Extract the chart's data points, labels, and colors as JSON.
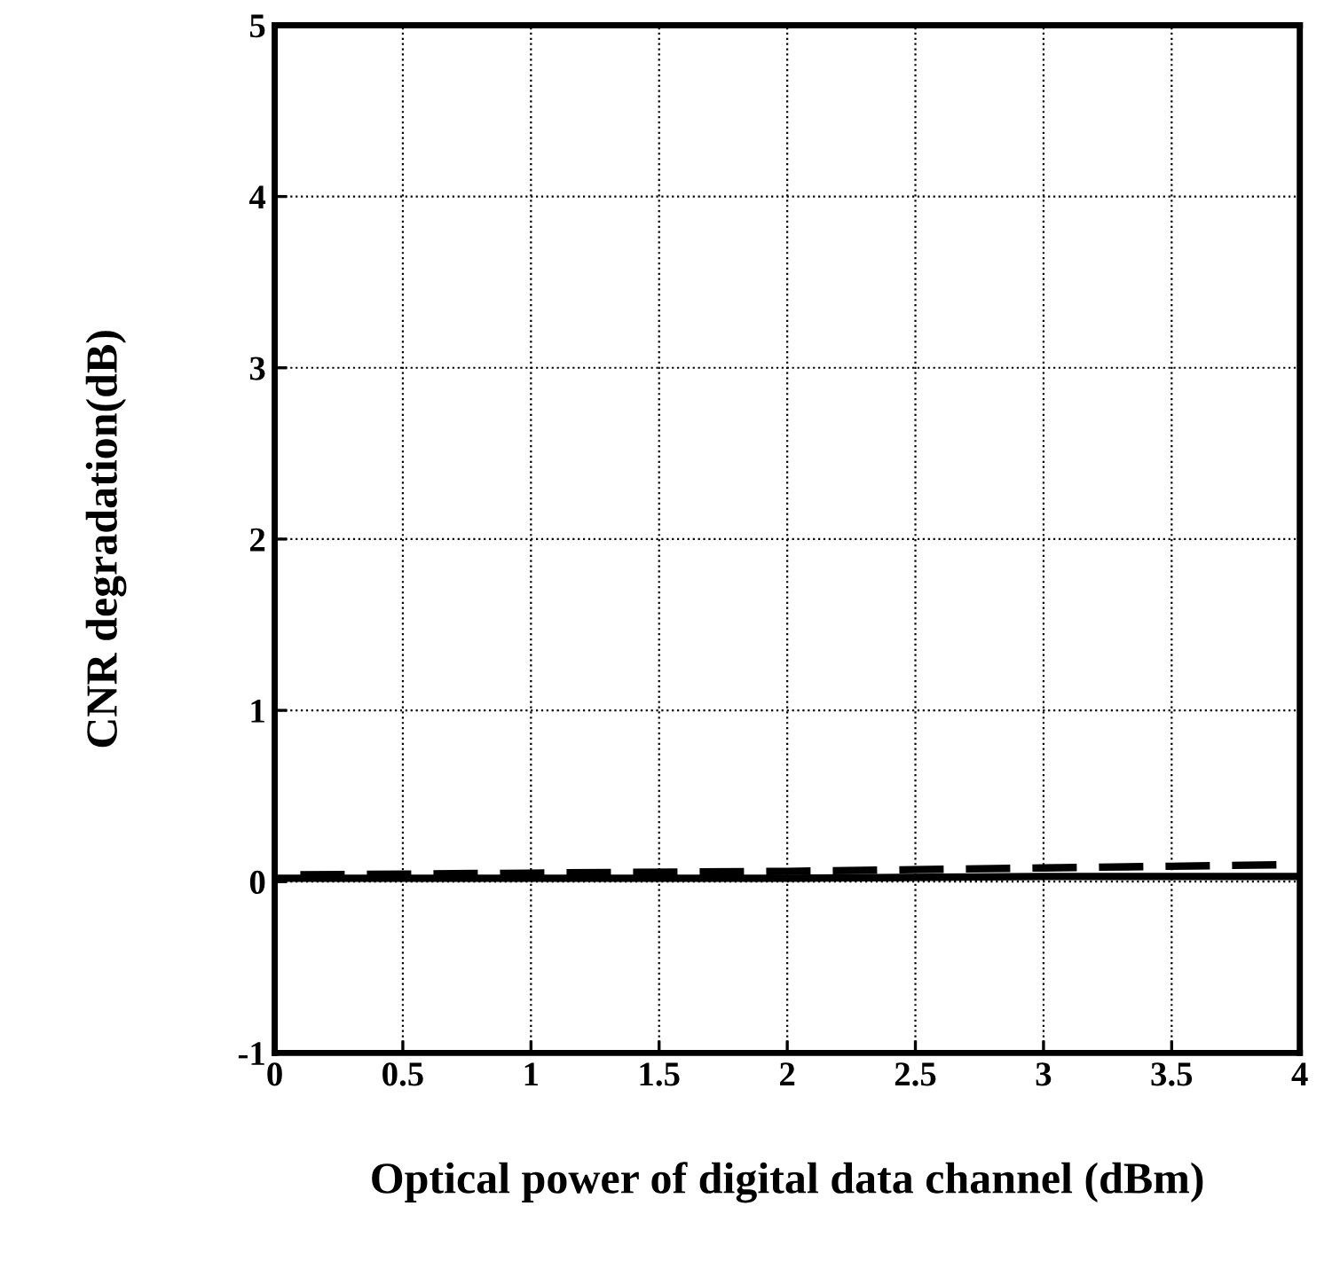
{
  "chart_data": {
    "type": "line",
    "xlabel": "Optical power of digital data channel (dBm)",
    "ylabel": "CNR degradation(dB)",
    "xlim": [
      0,
      4
    ],
    "ylim": [
      -1,
      5
    ],
    "xticks": [
      0,
      0.5,
      1,
      1.5,
      2,
      2.5,
      3,
      3.5,
      4
    ],
    "yticks": [
      -1,
      0,
      1,
      2,
      3,
      4,
      5
    ],
    "grid": true,
    "series": [
      {
        "color": "#000000",
        "line_style": "solid",
        "x": [
          0,
          1,
          2,
          3,
          4
        ],
        "values": [
          0.02,
          0.02,
          0.02,
          0.03,
          0.03
        ]
      },
      {
        "color": "#000000",
        "line_style": "dashed",
        "x": [
          0.1,
          1,
          2,
          2.5,
          3,
          3.5,
          4
        ],
        "values": [
          0.04,
          0.05,
          0.06,
          0.07,
          0.08,
          0.09,
          0.1
        ]
      }
    ]
  }
}
